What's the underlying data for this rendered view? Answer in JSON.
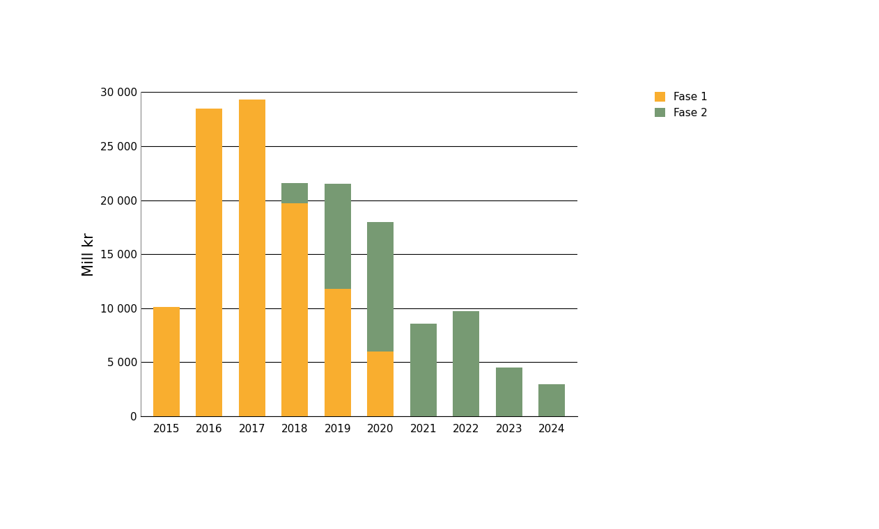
{
  "chart_data": {
    "type": "bar",
    "stacked": true,
    "y_label": "Mill kr",
    "categories": [
      "2015",
      "2016",
      "2017",
      "2018",
      "2019",
      "2020",
      "2021",
      "2022",
      "2023",
      "2024"
    ],
    "series": [
      {
        "name": "Fase 1",
        "color": "#F9AE2F",
        "values": [
          10100,
          28500,
          29300,
          19700,
          11800,
          6000,
          0,
          0,
          0,
          0
        ]
      },
      {
        "name": "Fase 2",
        "color": "#779A73",
        "values": [
          0,
          0,
          0,
          1900,
          9700,
          12000,
          8600,
          9700,
          4500,
          3000
        ]
      }
    ],
    "ylim": [
      0,
      30000
    ],
    "yticks": [
      0,
      {
        "value": 5000,
        "label": "5 000"
      },
      {
        "value": 10000,
        "label": "10 000"
      },
      {
        "value": 15000,
        "label": "15 000"
      },
      {
        "value": 20000,
        "label": "20 000"
      },
      {
        "value": 25000,
        "label": "25 000"
      },
      {
        "value": 30000,
        "label": "30 000"
      }
    ],
    "grid": true,
    "legend": "upper right"
  }
}
